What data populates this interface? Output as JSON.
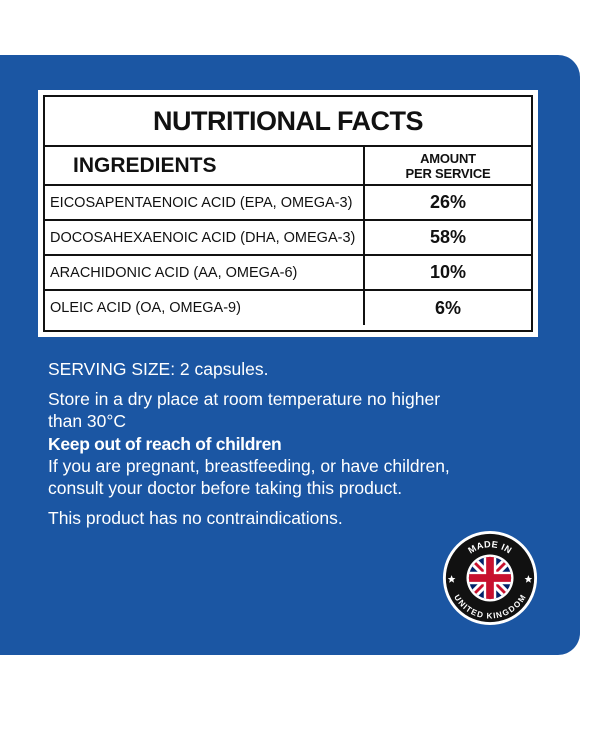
{
  "facts": {
    "title": "NUTRITIONAL FACTS",
    "header": {
      "ingredients": "INGREDIENTS",
      "amount_line1": "AMOUNT",
      "amount_line2": "PER SERVICE"
    },
    "rows": [
      {
        "name": "EICOSAPENTAENOIC ACID (EPA, OMEGA-3)",
        "amount": "26%"
      },
      {
        "name": "DOCOSAHEXAENOIC ACID (DHA, OMEGA-3)",
        "amount": "58%"
      },
      {
        "name": "ARACHIDONIC ACID (AA, OMEGA-6)",
        "amount": "10%"
      },
      {
        "name": "OLEIC ACID (OA, OMEGA-9)",
        "amount": "6%"
      }
    ]
  },
  "info": {
    "serving": "SERVING SIZE: 2 capsules.",
    "storage": "Store in a dry place at room temperature no higher than 30°C",
    "warning": "Keep out of reach of children",
    "pregnancy": "If you are pregnant, breastfeeding, or have children, consult your doctor before taking this product.",
    "contra": "This product has no contraindications."
  },
  "badge": {
    "top_text": "MADE IN",
    "bottom_text": "UNITED KINGDOM",
    "icon": "union-jack-icon"
  },
  "colors": {
    "panel_blue": "#1b56a3",
    "text_dark": "#111111",
    "flag_red": "#c8102e",
    "flag_blue": "#012169"
  }
}
